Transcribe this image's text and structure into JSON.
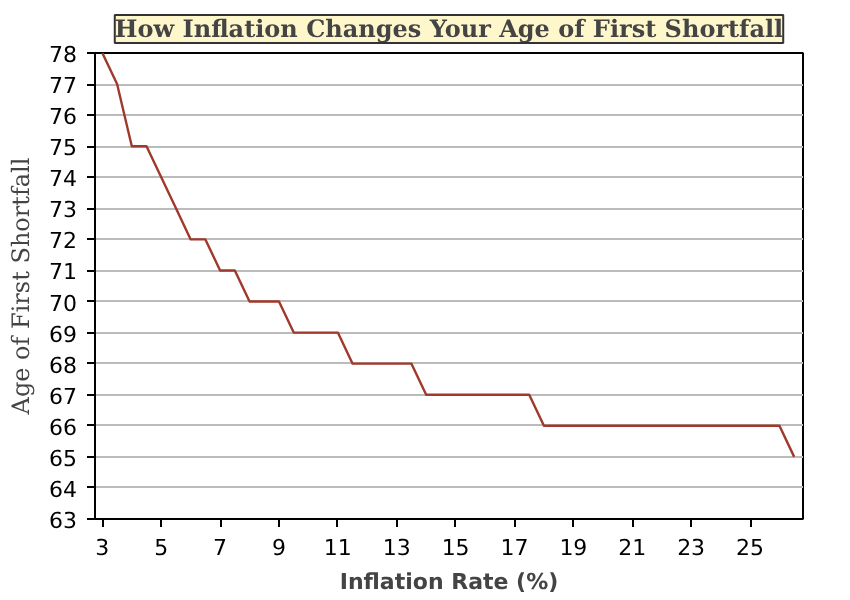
{
  "chart_data": {
    "type": "line",
    "title": "How Inflation Changes Your Age of First Shortfall",
    "xlabel": "Inflation Rate (%)",
    "ylabel": "Age of First Shortfall",
    "x": [
      3,
      3.5,
      4,
      4.5,
      5,
      5.5,
      6,
      6.5,
      7,
      7.5,
      8,
      9,
      9.5,
      11,
      11.5,
      13.5,
      14,
      17.5,
      18,
      26,
      26.5
    ],
    "series": [
      {
        "color": "#a0392b",
        "values": [
          78,
          77,
          75,
          75,
          74,
          73,
          72,
          72,
          71,
          71,
          70,
          70,
          69,
          69,
          68,
          68,
          67,
          67,
          66,
          66,
          65
        ]
      }
    ],
    "xlim": [
      2.75,
      26.8
    ],
    "ylim": [
      63,
      78
    ],
    "xticks": [
      3,
      5,
      7,
      9,
      11,
      13,
      15,
      17,
      19,
      21,
      23,
      25
    ],
    "yticks": [
      63,
      64,
      65,
      66,
      67,
      68,
      69,
      70,
      71,
      72,
      73,
      74,
      75,
      76,
      77,
      78
    ],
    "grid": "y",
    "marker": "none",
    "line_style": "solid"
  }
}
